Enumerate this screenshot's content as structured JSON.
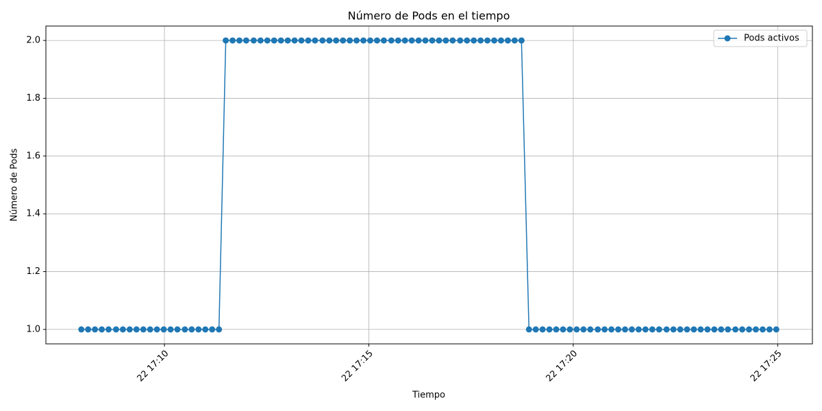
{
  "chart_data": {
    "type": "line",
    "title": "Número de Pods en el tiempo",
    "x_label": "Tiempo",
    "y_label": "Número de Pods",
    "x": [
      "22 17:07:58",
      "22 17:08:08",
      "22 17:08:18",
      "22 17:08:28",
      "22 17:08:38",
      "22 17:08:49",
      "22 17:08:59",
      "22 17:09:09",
      "22 17:09:19",
      "22 17:09:29",
      "22 17:09:39",
      "22 17:09:49",
      "22 17:09:59",
      "22 17:10:09",
      "22 17:10:19",
      "22 17:10:30",
      "22 17:10:40",
      "22 17:10:50",
      "22 17:11:00",
      "22 17:11:10",
      "22 17:11:20",
      "22 17:11:30",
      "22 17:11:40",
      "22 17:11:50",
      "22 17:12:00",
      "22 17:12:11",
      "22 17:12:21",
      "22 17:12:31",
      "22 17:12:41",
      "22 17:12:51",
      "22 17:13:01",
      "22 17:13:11",
      "22 17:13:21",
      "22 17:13:31",
      "22 17:13:41",
      "22 17:13:52",
      "22 17:14:02",
      "22 17:14:12",
      "22 17:14:22",
      "22 17:14:32",
      "22 17:14:42",
      "22 17:14:52",
      "22 17:15:02",
      "22 17:15:12",
      "22 17:15:22",
      "22 17:15:33",
      "22 17:15:43",
      "22 17:15:53",
      "22 17:16:03",
      "22 17:16:13",
      "22 17:16:23",
      "22 17:16:33",
      "22 17:16:43",
      "22 17:16:53",
      "22 17:17:03",
      "22 17:17:14",
      "22 17:17:24",
      "22 17:17:34",
      "22 17:17:44",
      "22 17:17:54",
      "22 17:18:04",
      "22 17:18:14",
      "22 17:18:24",
      "22 17:18:34",
      "22 17:18:44",
      "22 17:18:55",
      "22 17:19:05",
      "22 17:19:15",
      "22 17:19:25",
      "22 17:19:35",
      "22 17:19:45",
      "22 17:19:55",
      "22 17:20:05",
      "22 17:20:15",
      "22 17:20:25",
      "22 17:20:36",
      "22 17:20:46",
      "22 17:20:56",
      "22 17:21:06",
      "22 17:21:16",
      "22 17:21:26",
      "22 17:21:36",
      "22 17:21:46",
      "22 17:21:56",
      "22 17:22:06",
      "22 17:22:17",
      "22 17:22:27",
      "22 17:22:37",
      "22 17:22:47",
      "22 17:22:57",
      "22 17:23:07",
      "22 17:23:17",
      "22 17:23:27",
      "22 17:23:37",
      "22 17:23:47",
      "22 17:23:58",
      "22 17:24:08",
      "22 17:24:18",
      "22 17:24:28",
      "22 17:24:38",
      "22 17:24:48",
      "22 17:24:58"
    ],
    "series": [
      {
        "name": "Pods activos",
        "color": "#1f77b4",
        "values": [
          1,
          1,
          1,
          1,
          1,
          1,
          1,
          1,
          1,
          1,
          1,
          1,
          1,
          1,
          1,
          1,
          1,
          1,
          1,
          1,
          1,
          2,
          2,
          2,
          2,
          2,
          2,
          2,
          2,
          2,
          2,
          2,
          2,
          2,
          2,
          2,
          2,
          2,
          2,
          2,
          2,
          2,
          2,
          2,
          2,
          2,
          2,
          2,
          2,
          2,
          2,
          2,
          2,
          2,
          2,
          2,
          2,
          2,
          2,
          2,
          2,
          2,
          2,
          2,
          2,
          1,
          1,
          1,
          1,
          1,
          1,
          1,
          1,
          1,
          1,
          1,
          1,
          1,
          1,
          1,
          1,
          1,
          1,
          1,
          1,
          1,
          1,
          1,
          1,
          1,
          1,
          1,
          1,
          1,
          1,
          1,
          1,
          1,
          1,
          1,
          1,
          1
        ]
      }
    ],
    "xlim": [
      "22 17:07:06",
      "22 17:25:51"
    ],
    "xticks": [
      "22 17:10",
      "22 17:15",
      "22 17:20",
      "22 17:25"
    ],
    "ylim": [
      0.95,
      2.05
    ],
    "yticks": [
      {
        "value": 1.0,
        "label": "1.0"
      },
      {
        "value": 1.2,
        "label": "1.2"
      },
      {
        "value": 1.4,
        "label": "1.4"
      },
      {
        "value": 1.6,
        "label": "1.6"
      },
      {
        "value": 1.8,
        "label": "1.8"
      },
      {
        "value": 2.0,
        "label": "2.0"
      }
    ],
    "grid": true,
    "legend": "upper right"
  }
}
